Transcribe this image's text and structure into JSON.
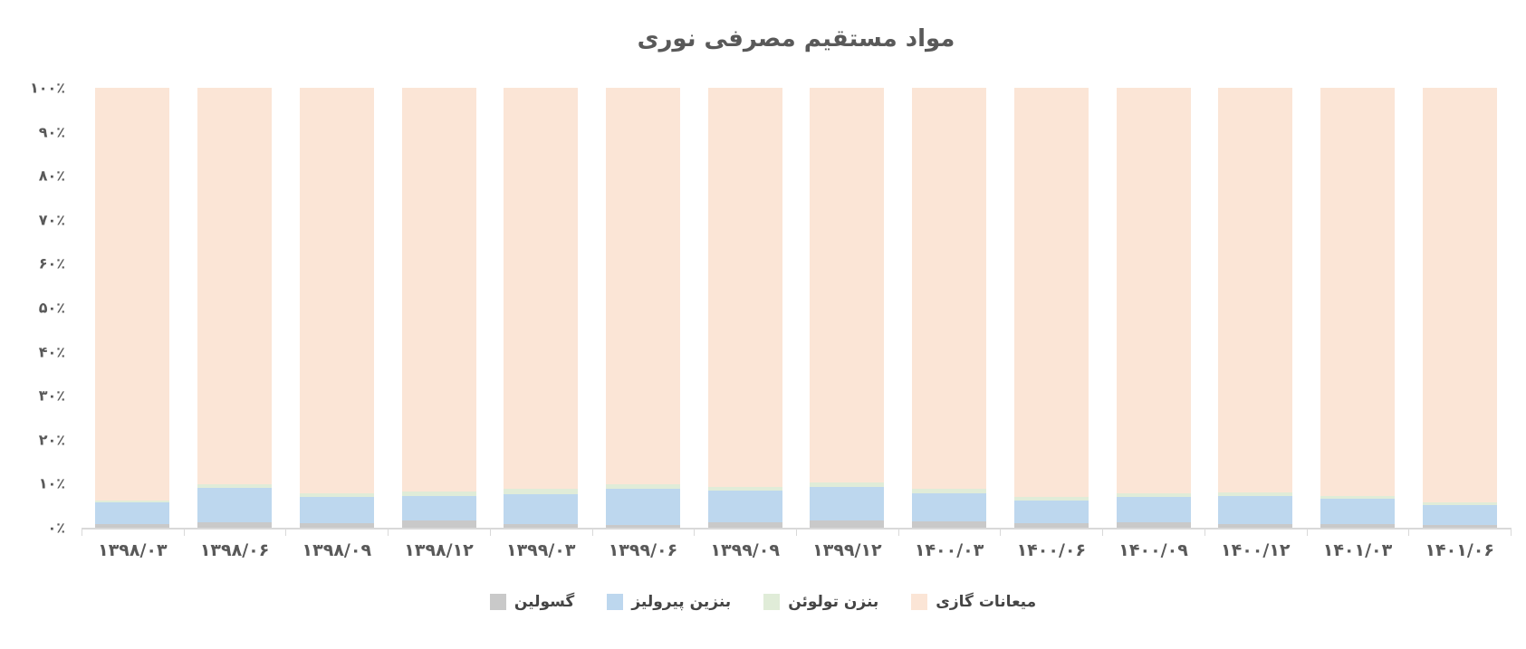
{
  "title": "مواد مستقیم مصرفی نوری",
  "colors": {
    "axis_line": "#d9d9d9",
    "label_text": "#595959",
    "background": "#ffffff"
  },
  "chart_data": {
    "type": "bar",
    "stacked": true,
    "stacking": "percent",
    "title": "مواد مستقیم مصرفی نوری",
    "xlabel": "",
    "ylabel": "",
    "ylim": [
      0,
      100
    ],
    "grid": false,
    "legend_position": "bottom",
    "categories": [
      "۱۳۹۸/۰۳",
      "۱۳۹۸/۰۶",
      "۱۳۹۸/۰۹",
      "۱۳۹۸/۱۲",
      "۱۳۹۹/۰۳",
      "۱۳۹۹/۰۶",
      "۱۳۹۹/۰۹",
      "۱۳۹۹/۱۲",
      "۱۴۰۰/۰۳",
      "۱۴۰۰/۰۶",
      "۱۴۰۰/۰۹",
      "۱۴۰۰/۱۲",
      "۱۴۰۱/۰۳",
      "۱۴۰۱/۰۶"
    ],
    "y_ticks": [
      {
        "value": 0,
        "label": "۰٪"
      },
      {
        "value": 10,
        "label": "۱۰٪"
      },
      {
        "value": 20,
        "label": "۲۰٪"
      },
      {
        "value": 30,
        "label": "۳۰٪"
      },
      {
        "value": 40,
        "label": "۴۰٪"
      },
      {
        "value": 50,
        "label": "۵۰٪"
      },
      {
        "value": 60,
        "label": "۶۰٪"
      },
      {
        "value": 70,
        "label": "۷۰٪"
      },
      {
        "value": 80,
        "label": "۸۰٪"
      },
      {
        "value": 90,
        "label": "۹۰٪"
      },
      {
        "value": 100,
        "label": "۱۰۰٪"
      }
    ],
    "series": [
      {
        "name": "گسولین",
        "color": "#c9c9c9",
        "values": [
          0.8,
          1.2,
          1.1,
          1.6,
          0.8,
          0.6,
          1.3,
          1.6,
          1.5,
          1.1,
          1.2,
          0.8,
          0.8,
          0.6
        ]
      },
      {
        "name": "بنزین پیرولیز",
        "color": "#bdd7ee",
        "values": [
          4.9,
          7.9,
          6.0,
          5.7,
          6.8,
          8.2,
          7.2,
          7.6,
          6.4,
          5.1,
          5.9,
          6.5,
          5.7,
          4.6
        ]
      },
      {
        "name": "بنزن تولوئن",
        "color": "#e0ecd8",
        "values": [
          0.5,
          0.8,
          0.7,
          0.9,
          1.2,
          1.1,
          0.8,
          1.0,
          1.0,
          0.9,
          0.8,
          0.8,
          0.7,
          0.6
        ]
      },
      {
        "name": "میعانات گازی",
        "color": "#fbe5d6",
        "values": [
          93.8,
          90.1,
          92.2,
          91.8,
          91.2,
          90.1,
          90.7,
          89.8,
          91.1,
          92.9,
          92.1,
          91.9,
          92.8,
          94.2
        ]
      }
    ]
  }
}
